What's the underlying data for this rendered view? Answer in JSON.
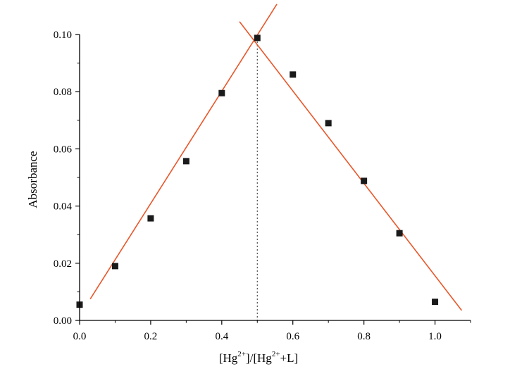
{
  "chart_data": {
    "type": "scatter",
    "xlabel_parts": [
      "[Hg",
      "2+",
      "]/[Hg",
      "2+",
      "+L]"
    ],
    "ylabel": "Absorbance",
    "xlim": [
      0.0,
      1.1
    ],
    "ylim": [
      0.0,
      0.1
    ],
    "x_ticks": [
      0.0,
      0.2,
      0.4,
      0.6,
      0.8,
      1.0
    ],
    "x_tick_labels": [
      "0.0",
      "0.2",
      "0.4",
      "0.6",
      "0.8",
      "1.0"
    ],
    "y_ticks": [
      0.0,
      0.02,
      0.04,
      0.06,
      0.08,
      0.1
    ],
    "y_tick_labels": [
      "0.00",
      "0.02",
      "0.04",
      "0.06",
      "0.08",
      "0.10"
    ],
    "grid": false,
    "points": [
      {
        "x": 0.0,
        "y": 0.0055
      },
      {
        "x": 0.1,
        "y": 0.019
      },
      {
        "x": 0.2,
        "y": 0.0357
      },
      {
        "x": 0.3,
        "y": 0.0557
      },
      {
        "x": 0.4,
        "y": 0.0795
      },
      {
        "x": 0.5,
        "y": 0.0988
      },
      {
        "x": 0.6,
        "y": 0.086
      },
      {
        "x": 0.7,
        "y": 0.069
      },
      {
        "x": 0.8,
        "y": 0.0488
      },
      {
        "x": 0.9,
        "y": 0.0305
      },
      {
        "x": 1.0,
        "y": 0.0065
      }
    ],
    "fit_lines": [
      {
        "x": [
          0.03,
          0.555
        ],
        "y": [
          0.0075,
          0.1106
        ]
      },
      {
        "x": [
          0.45,
          1.075
        ],
        "y": [
          0.1045,
          0.0035
        ]
      }
    ],
    "reference_line_x": 0.5,
    "colors": {
      "points": "#1a1a1a",
      "fit": "#e8572a",
      "axis": "#000000",
      "reference": "#333333"
    }
  }
}
